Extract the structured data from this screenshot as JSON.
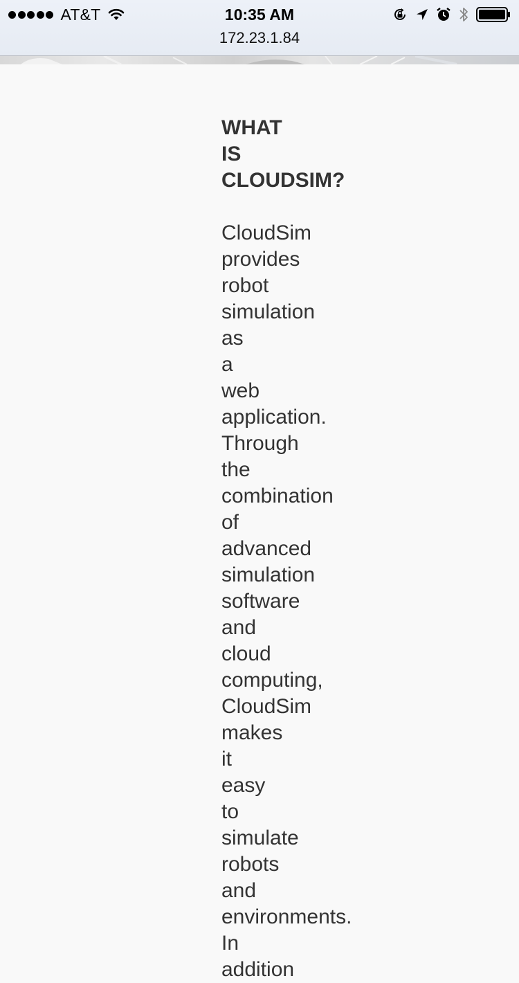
{
  "status_bar": {
    "carrier": "AT&T",
    "time": "10:35 AM",
    "url": "172.23.1.84",
    "signal_bars_filled": 5,
    "icons": [
      "wifi-icon",
      "orientation-lock-icon",
      "location-icon",
      "alarm-icon",
      "bluetooth-icon",
      "battery-icon"
    ]
  },
  "main": {
    "heading": "WHAT IS CLOUDSIM?",
    "body": "CloudSim provides robot simulation as a web application. Through the combination of advanced simulation software and cloud computing, CloudSim makes it easy to simulate robots and environments. In addition"
  }
}
